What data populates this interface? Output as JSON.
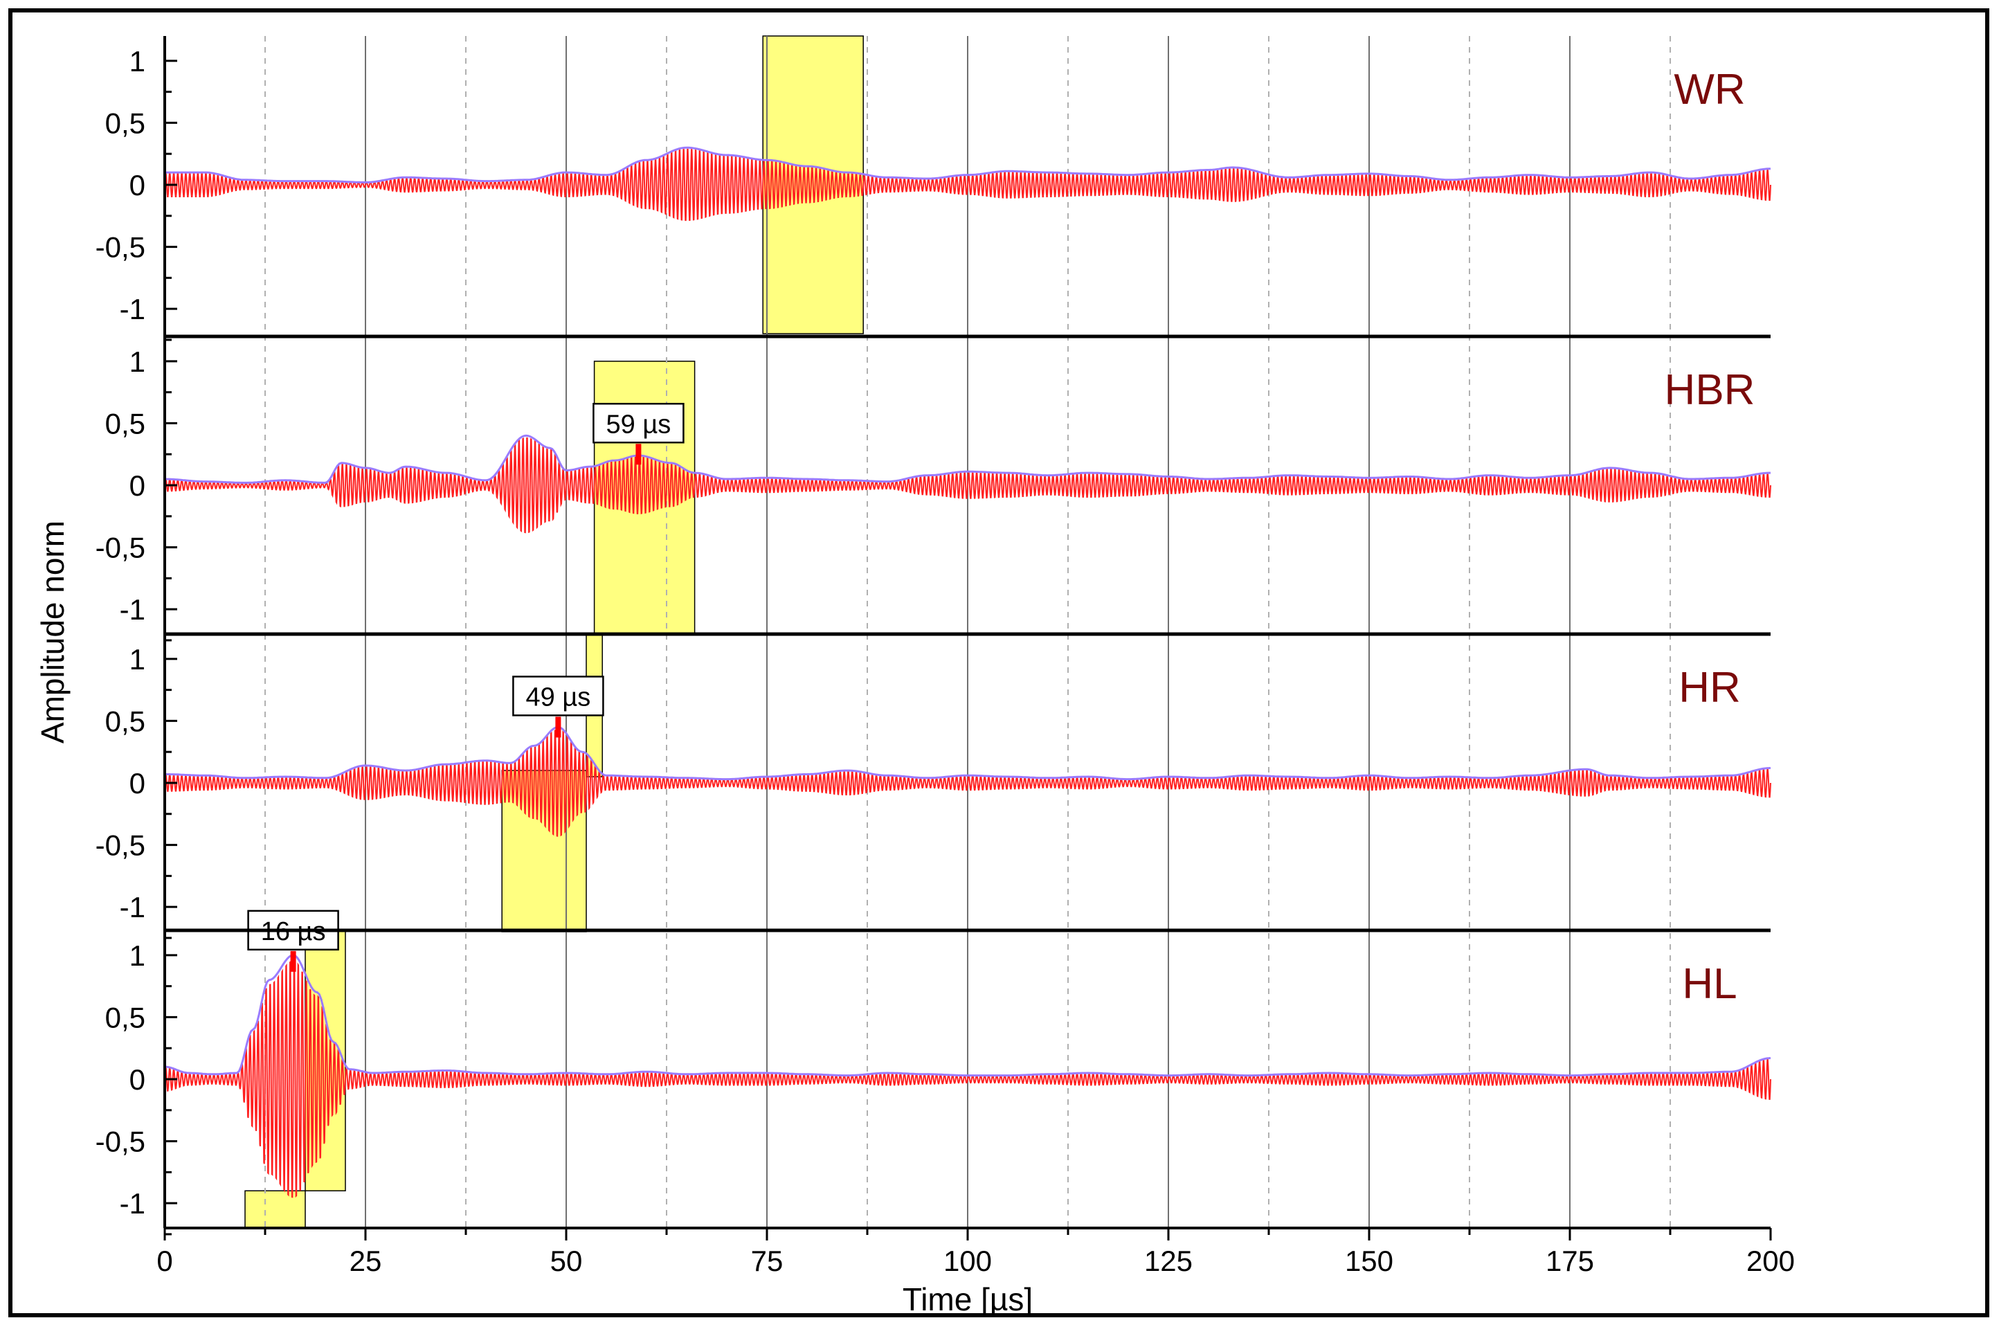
{
  "chart_data": {
    "type": "line",
    "xlabel": "Time [µs]",
    "ylabel": "Amplitude norm",
    "xlim": [
      0,
      200
    ],
    "x_ticks": [
      0,
      25,
      50,
      75,
      100,
      125,
      150,
      175,
      200
    ],
    "x_tick_labels": [
      "0",
      "25",
      "50",
      "75",
      "100",
      "125",
      "150",
      "175",
      "200"
    ],
    "y_ticks": [
      1,
      0.5,
      0,
      -0.5,
      -1
    ],
    "y_tick_labels": [
      "1",
      "0,5",
      "0",
      "-0,5",
      "-1"
    ],
    "ylim": [
      -1.2,
      1.2
    ],
    "grid": "vertical",
    "colors": {
      "signal": "#ff2020",
      "envelope": "#9a7cff",
      "window": "#ffff80",
      "label": "#7a0a0a",
      "marker": "#ff0000"
    },
    "panels": [
      {
        "name": "WR",
        "marker_label": "",
        "windows": [
          {
            "x0": 74.5,
            "x1": 87,
            "y0": -1.2,
            "y1": 1.2
          }
        ],
        "envelope_points": [
          [
            0,
            0.1
          ],
          [
            5,
            0.1
          ],
          [
            10,
            0.04
          ],
          [
            15,
            0.03
          ],
          [
            20,
            0.03
          ],
          [
            25,
            0.02
          ],
          [
            30,
            0.06
          ],
          [
            35,
            0.05
          ],
          [
            40,
            0.03
          ],
          [
            45,
            0.04
          ],
          [
            50,
            0.1
          ],
          [
            55,
            0.08
          ],
          [
            60,
            0.2
          ],
          [
            65,
            0.3
          ],
          [
            70,
            0.24
          ],
          [
            75,
            0.2
          ],
          [
            80,
            0.15
          ],
          [
            85,
            0.1
          ],
          [
            90,
            0.06
          ],
          [
            95,
            0.05
          ],
          [
            100,
            0.08
          ],
          [
            105,
            0.11
          ],
          [
            110,
            0.1
          ],
          [
            115,
            0.09
          ],
          [
            120,
            0.08
          ],
          [
            125,
            0.1
          ],
          [
            130,
            0.12
          ],
          [
            133,
            0.14
          ],
          [
            140,
            0.06
          ],
          [
            145,
            0.08
          ],
          [
            150,
            0.09
          ],
          [
            155,
            0.07
          ],
          [
            160,
            0.04
          ],
          [
            165,
            0.06
          ],
          [
            170,
            0.08
          ],
          [
            175,
            0.06
          ],
          [
            180,
            0.07
          ],
          [
            185,
            0.1
          ],
          [
            190,
            0.05
          ],
          [
            195,
            0.08
          ],
          [
            200,
            0.13
          ]
        ]
      },
      {
        "name": "HBR",
        "marker_label": "59 µs",
        "marker_x": 59,
        "marker_y": 0.3,
        "windows": [
          {
            "x0": 53.5,
            "x1": 66,
            "y0": -1.2,
            "y1": 1.0
          }
        ],
        "envelope_points": [
          [
            0,
            0.05
          ],
          [
            5,
            0.03
          ],
          [
            10,
            0.02
          ],
          [
            15,
            0.04
          ],
          [
            20,
            0.02
          ],
          [
            22,
            0.18
          ],
          [
            25,
            0.14
          ],
          [
            28,
            0.1
          ],
          [
            30,
            0.15
          ],
          [
            35,
            0.1
          ],
          [
            40,
            0.04
          ],
          [
            45,
            0.4
          ],
          [
            48,
            0.3
          ],
          [
            50,
            0.12
          ],
          [
            53,
            0.15
          ],
          [
            56,
            0.2
          ],
          [
            59,
            0.24
          ],
          [
            63,
            0.18
          ],
          [
            66,
            0.1
          ],
          [
            70,
            0.05
          ],
          [
            75,
            0.06
          ],
          [
            80,
            0.05
          ],
          [
            85,
            0.04
          ],
          [
            90,
            0.03
          ],
          [
            95,
            0.08
          ],
          [
            100,
            0.11
          ],
          [
            105,
            0.1
          ],
          [
            110,
            0.08
          ],
          [
            115,
            0.1
          ],
          [
            120,
            0.09
          ],
          [
            125,
            0.07
          ],
          [
            130,
            0.05
          ],
          [
            135,
            0.06
          ],
          [
            140,
            0.08
          ],
          [
            145,
            0.07
          ],
          [
            150,
            0.06
          ],
          [
            155,
            0.07
          ],
          [
            160,
            0.05
          ],
          [
            165,
            0.08
          ],
          [
            170,
            0.06
          ],
          [
            175,
            0.08
          ],
          [
            180,
            0.14
          ],
          [
            185,
            0.1
          ],
          [
            190,
            0.05
          ],
          [
            195,
            0.06
          ],
          [
            200,
            0.1
          ]
        ]
      },
      {
        "name": "HR",
        "marker_label": "49 µs",
        "marker_x": 49,
        "marker_y": 0.5,
        "windows": [
          {
            "x0": 42,
            "x1": 52.5,
            "y0": -1.2,
            "y1": 0.1
          },
          {
            "x0": 52.5,
            "x1": 54.5,
            "y0": 0.05,
            "y1": 1.2
          }
        ],
        "envelope_points": [
          [
            0,
            0.07
          ],
          [
            5,
            0.06
          ],
          [
            10,
            0.04
          ],
          [
            15,
            0.05
          ],
          [
            20,
            0.04
          ],
          [
            25,
            0.14
          ],
          [
            30,
            0.1
          ],
          [
            35,
            0.15
          ],
          [
            40,
            0.18
          ],
          [
            43,
            0.16
          ],
          [
            46,
            0.3
          ],
          [
            49,
            0.45
          ],
          [
            52,
            0.25
          ],
          [
            55,
            0.06
          ],
          [
            60,
            0.05
          ],
          [
            65,
            0.04
          ],
          [
            70,
            0.03
          ],
          [
            75,
            0.05
          ],
          [
            80,
            0.07
          ],
          [
            85,
            0.1
          ],
          [
            90,
            0.06
          ],
          [
            95,
            0.04
          ],
          [
            100,
            0.06
          ],
          [
            105,
            0.05
          ],
          [
            110,
            0.04
          ],
          [
            115,
            0.05
          ],
          [
            120,
            0.03
          ],
          [
            125,
            0.05
          ],
          [
            130,
            0.04
          ],
          [
            135,
            0.06
          ],
          [
            140,
            0.05
          ],
          [
            145,
            0.04
          ],
          [
            150,
            0.06
          ],
          [
            155,
            0.04
          ],
          [
            160,
            0.05
          ],
          [
            165,
            0.04
          ],
          [
            170,
            0.06
          ],
          [
            177,
            0.11
          ],
          [
            180,
            0.06
          ],
          [
            185,
            0.04
          ],
          [
            190,
            0.05
          ],
          [
            195,
            0.06
          ],
          [
            200,
            0.12
          ]
        ]
      },
      {
        "name": "HL",
        "marker_label": "16 µs",
        "marker_x": 16,
        "marker_y": 1.0,
        "windows": [
          {
            "x0": 17.5,
            "x1": 22.5,
            "y0": -0.9,
            "y1": 1.2
          },
          {
            "x0": 10,
            "x1": 17.5,
            "y0": -1.2,
            "y1": -0.9
          }
        ],
        "envelope_points": [
          [
            0,
            0.1
          ],
          [
            3,
            0.05
          ],
          [
            6,
            0.04
          ],
          [
            9,
            0.05
          ],
          [
            11,
            0.4
          ],
          [
            13,
            0.8
          ],
          [
            16,
            1.0
          ],
          [
            19,
            0.7
          ],
          [
            21,
            0.3
          ],
          [
            23,
            0.08
          ],
          [
            26,
            0.05
          ],
          [
            30,
            0.06
          ],
          [
            35,
            0.07
          ],
          [
            40,
            0.05
          ],
          [
            45,
            0.04
          ],
          [
            50,
            0.05
          ],
          [
            55,
            0.04
          ],
          [
            60,
            0.06
          ],
          [
            65,
            0.04
          ],
          [
            70,
            0.05
          ],
          [
            75,
            0.05
          ],
          [
            80,
            0.04
          ],
          [
            85,
            0.03
          ],
          [
            90,
            0.05
          ],
          [
            95,
            0.04
          ],
          [
            100,
            0.03
          ],
          [
            105,
            0.03
          ],
          [
            110,
            0.04
          ],
          [
            115,
            0.05
          ],
          [
            120,
            0.04
          ],
          [
            125,
            0.03
          ],
          [
            130,
            0.04
          ],
          [
            135,
            0.03
          ],
          [
            140,
            0.04
          ],
          [
            145,
            0.05
          ],
          [
            150,
            0.04
          ],
          [
            155,
            0.03
          ],
          [
            160,
            0.04
          ],
          [
            165,
            0.05
          ],
          [
            170,
            0.04
          ],
          [
            175,
            0.03
          ],
          [
            180,
            0.04
          ],
          [
            185,
            0.05
          ],
          [
            190,
            0.05
          ],
          [
            195,
            0.06
          ],
          [
            200,
            0.17
          ]
        ]
      }
    ]
  }
}
